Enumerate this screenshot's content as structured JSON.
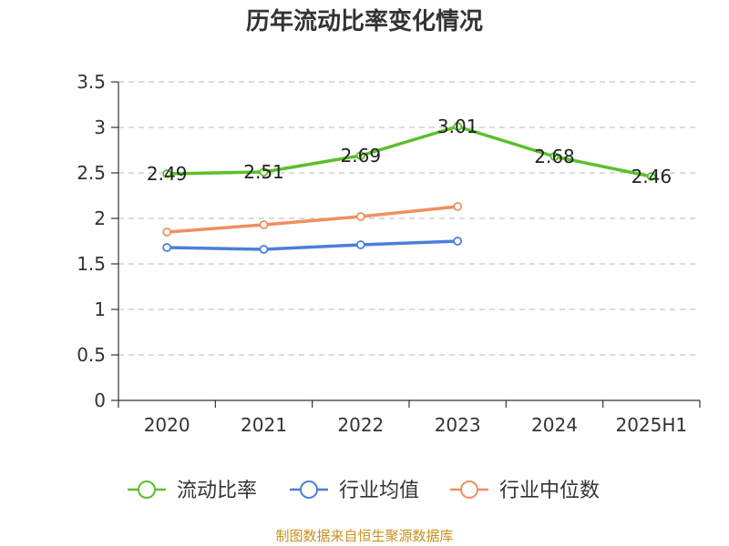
{
  "chart_data": {
    "type": "line",
    "title": "历年流动比率变化情况",
    "categories": [
      "2020",
      "2021",
      "2022",
      "2023",
      "2024",
      "2025H1"
    ],
    "ylim": [
      0,
      3.5
    ],
    "yticks": [
      "0",
      "0.5",
      "1",
      "1.5",
      "2",
      "2.5",
      "3",
      "3.5"
    ],
    "grid": true,
    "legend_position": "bottom",
    "series": [
      {
        "name": "流动比率",
        "color": "#5cbf2a",
        "values": [
          2.49,
          2.51,
          2.69,
          3.01,
          2.68,
          2.46
        ],
        "labels": [
          "2.49",
          "2.51",
          "2.69",
          "3.01",
          "2.68",
          "2.46"
        ],
        "show_labels": true
      },
      {
        "name": "行业均值",
        "color": "#4a7fdc",
        "values": [
          1.68,
          1.66,
          1.71,
          1.75,
          null,
          null
        ],
        "show_labels": false
      },
      {
        "name": "行业中位数",
        "color": "#f08f5e",
        "values": [
          1.85,
          1.93,
          2.02,
          2.13,
          null,
          null
        ],
        "show_labels": false
      }
    ]
  },
  "source_text": "制图数据来自恒生聚源数据库"
}
